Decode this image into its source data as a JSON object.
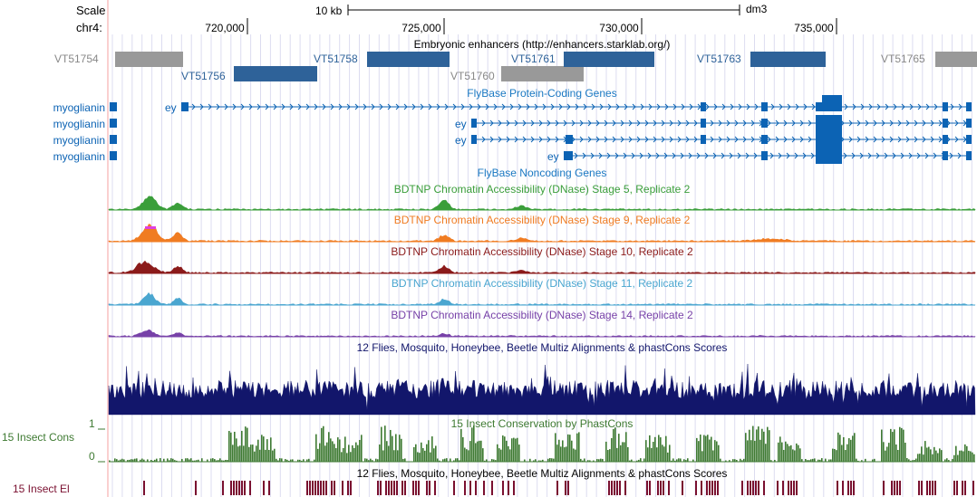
{
  "colors": {
    "enh_dark": "#2e6299",
    "enh_grey": "#999999",
    "gene_blue": "#0c63b4",
    "dnase_s5": "#3a9e3a",
    "dnase_s9": "#f07c22",
    "dnase_s10": "#8b1a1a",
    "dnase_s11": "#4aa6d0",
    "dnase_s14": "#7741a8",
    "multiz": "#12166b",
    "phastcons": "#3e7a32",
    "elements": "#7a1030",
    "grid": "#dcdcf0",
    "s9_peak": "#e040e0"
  },
  "header": {
    "scale_label": "Scale",
    "chrom_label": "chr4:",
    "scale_bar_text": "10 kb",
    "assembly": "dm3",
    "ticks": [
      "720,000",
      "725,000",
      "730,000",
      "735,000"
    ]
  },
  "enhancers": {
    "title": "Embryonic enhancers (http://enhancers.starklab.org/)",
    "items": [
      {
        "name": "VT51754",
        "tone": "grey"
      },
      {
        "name": "VT51756",
        "tone": "dark"
      },
      {
        "name": "VT51758",
        "tone": "dark"
      },
      {
        "name": "VT51760",
        "tone": "grey"
      },
      {
        "name": "VT51761",
        "tone": "dark"
      },
      {
        "name": "VT51763",
        "tone": "dark"
      },
      {
        "name": "VT51765",
        "tone": "grey"
      }
    ]
  },
  "genes": {
    "title": "FlyBase Protein-Coding Genes",
    "left_names": [
      "myoglianin",
      "myoglianin",
      "myoglianin",
      "myoglianin"
    ],
    "transcript_names": [
      "ey",
      "ey",
      "ey",
      "ey"
    ]
  },
  "noncoding": {
    "title": "FlyBase Noncoding Genes"
  },
  "dnase": [
    {
      "title": "BDTNP Chromatin Accessibility (DNase) Stage 5, Replicate 2",
      "key": "dnase_s5"
    },
    {
      "title": "BDTNP Chromatin Accessibility (DNase) Stage 9, Replicate 2",
      "key": "dnase_s9"
    },
    {
      "title": "BDTNP Chromatin Accessibility (DNase) Stage 10, Replicate 2",
      "key": "dnase_s10"
    },
    {
      "title": "BDTNP Chromatin Accessibility (DNase) Stage 11, Replicate 2",
      "key": "dnase_s11"
    },
    {
      "title": "BDTNP Chromatin Accessibility (DNase) Stage 14, Replicate 2",
      "key": "dnase_s14"
    }
  ],
  "multiz": {
    "title": "12 Flies, Mosquito, Honeybee, Beetle Multiz Alignments & phastCons Scores"
  },
  "phastcons": {
    "title": "15 Insect Conservation by PhastCons",
    "side_label": "15 Insect Cons",
    "axis_max": "1",
    "axis_min": "0"
  },
  "elements": {
    "title": "12 Flies, Mosquito, Honeybee, Beetle Multiz Alignments & phastCons Scores",
    "side_label": "15 Insect El"
  }
}
